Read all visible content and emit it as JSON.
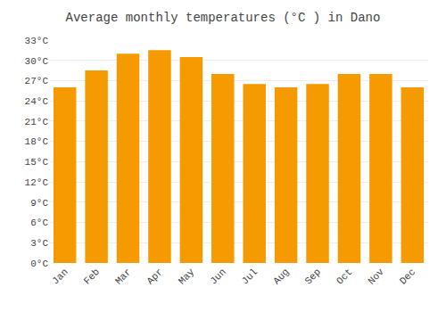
{
  "chart_data": {
    "type": "bar",
    "title": "Average monthly temperatures (°C ) in Dano",
    "categories": [
      "Jan",
      "Feb",
      "Mar",
      "Apr",
      "May",
      "Jun",
      "Jul",
      "Aug",
      "Sep",
      "Oct",
      "Nov",
      "Dec"
    ],
    "values": [
      26.0,
      28.5,
      31.0,
      31.5,
      30.5,
      28.0,
      26.5,
      26.0,
      26.5,
      28.0,
      28.0,
      26.0
    ],
    "color": "#F59A00",
    "ylim": [
      0,
      33
    ],
    "yticks": [
      {
        "value": 0,
        "label": "0°C"
      },
      {
        "value": 3,
        "label": "3°C"
      },
      {
        "value": 6,
        "label": "6°C"
      },
      {
        "value": 9,
        "label": "9°C"
      },
      {
        "value": 12,
        "label": "12°C"
      },
      {
        "value": 15,
        "label": "15°C"
      },
      {
        "value": 18,
        "label": "18°C"
      },
      {
        "value": 21,
        "label": "21°C"
      },
      {
        "value": 24,
        "label": "24°C"
      },
      {
        "value": 27,
        "label": "27°C"
      },
      {
        "value": 30,
        "label": "30°C"
      },
      {
        "value": 33,
        "label": "33°C"
      }
    ],
    "grid": true
  }
}
